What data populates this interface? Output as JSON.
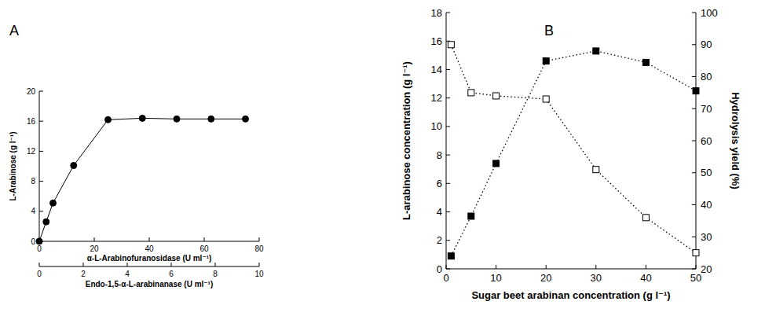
{
  "chart_data": [
    {
      "type": "line",
      "title": "A",
      "x": [
        0,
        2.5,
        5,
        12.5,
        25,
        37.5,
        50,
        62.5,
        75
      ],
      "series": [
        {
          "values": [
            0,
            2.6,
            5.1,
            10.1,
            16.2,
            16.4,
            16.3,
            16.3,
            16.3
          ],
          "color": "#000000",
          "marker": "circle",
          "line_style": "solid"
        }
      ],
      "xlim": [
        0,
        80
      ],
      "xticks": [
        0,
        20,
        40,
        60,
        80
      ],
      "x_label": "α-L-Arabinofuranosidase (U ml⁻¹)",
      "x2lim": [
        0,
        10
      ],
      "x2ticks": [
        0,
        2,
        4,
        6,
        8,
        10
      ],
      "x2_label": "Endo-1,5-α-L-arabinanase (U ml⁻¹)",
      "ylim": [
        0,
        20
      ],
      "yticks": [
        0,
        4,
        8,
        12,
        16,
        20
      ],
      "y_label": "L-Arabinose (g l⁻¹)"
    },
    {
      "type": "line",
      "title": "B",
      "x": [
        1,
        5,
        10,
        20,
        30,
        40,
        50
      ],
      "series": [
        {
          "values": [
            0.9,
            3.7,
            7.4,
            14.6,
            15.3,
            14.5,
            12.5
          ],
          "color": "#000000",
          "marker": "square",
          "line_style": "dotted"
        },
        {
          "values": [
            90,
            75,
            74,
            73,
            51,
            36,
            25
          ],
          "color": "#000000",
          "marker": "square-open",
          "line_style": "dotted",
          "axis": "y2"
        }
      ],
      "xlim": [
        0,
        50
      ],
      "xticks": [
        0,
        10,
        20,
        30,
        40,
        50
      ],
      "x_label": "Sugar beet arabinan concentration (g l⁻¹)",
      "ylim": [
        0,
        18
      ],
      "yticks": [
        0,
        2,
        4,
        6,
        8,
        10,
        12,
        14,
        16,
        18
      ],
      "y_label": "L-arabinose concentration (g l⁻¹)",
      "y2lim": [
        20,
        100
      ],
      "y2ticks": [
        20,
        30,
        40,
        50,
        60,
        70,
        80,
        90,
        100
      ],
      "y2_label": "Hydrolysis yield (%)"
    }
  ]
}
